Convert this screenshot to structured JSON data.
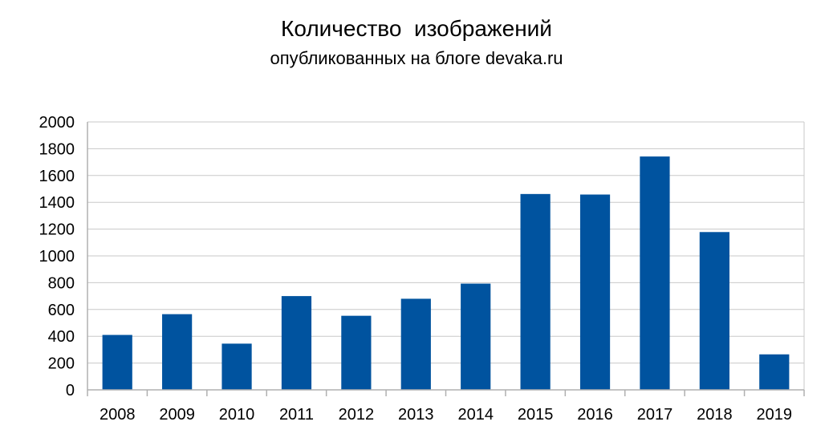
{
  "chart_data": {
    "type": "bar",
    "title": "Количество  изображений",
    "subtitle": "опубликованных на блоге devaka.ru",
    "categories": [
      "2008",
      "2009",
      "2010",
      "2011",
      "2012",
      "2013",
      "2014",
      "2015",
      "2016",
      "2017",
      "2018",
      "2019"
    ],
    "values": [
      410,
      565,
      345,
      700,
      553,
      680,
      793,
      1462,
      1458,
      1742,
      1178,
      265
    ],
    "ylim": [
      0,
      2000
    ],
    "yticks": [
      "0",
      "200",
      "400",
      "600",
      "800",
      "1000",
      "1200",
      "1400",
      "1600",
      "1800",
      "2000"
    ],
    "xlabel": "",
    "ylabel": "",
    "grid": true,
    "legend": "none",
    "bar_color": "#00539f",
    "grid_color": "#c8c8c8"
  }
}
